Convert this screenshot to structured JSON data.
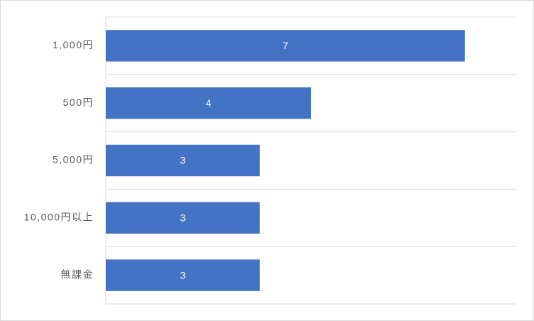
{
  "chart_data": {
    "type": "bar",
    "orientation": "horizontal",
    "categories": [
      "1,000円",
      "500円",
      "5,000円",
      "10,000円以上",
      "無課金"
    ],
    "values": [
      7,
      4,
      3,
      3,
      3
    ],
    "color": "#4472c4",
    "xlim": [
      0,
      8
    ],
    "data_labels": true
  }
}
